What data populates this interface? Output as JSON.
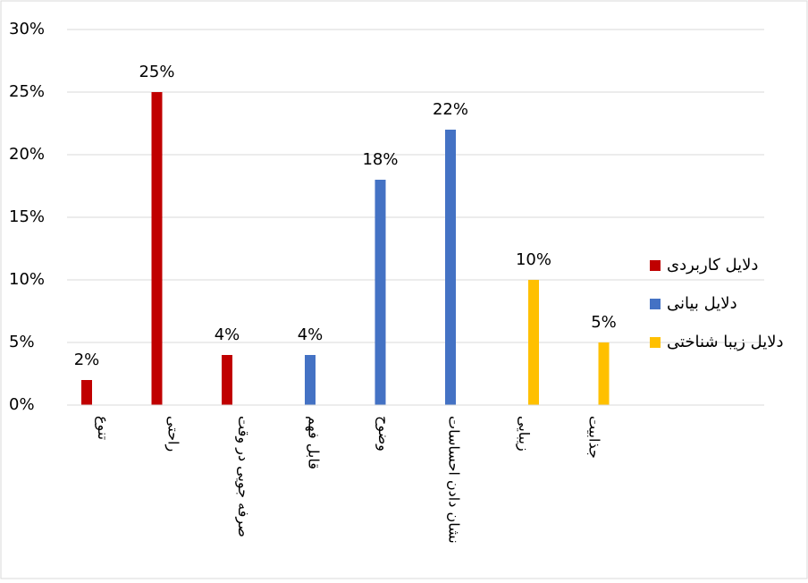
{
  "chart_data": {
    "type": "bar",
    "categories": [
      "تنوع",
      "راحتی",
      "صرفه جویی در وقت",
      "قابل فهم",
      "وضوح",
      "نشان دادن احساسات",
      "زیبایی",
      "جذابیت"
    ],
    "series": [
      {
        "name": "دلایل کاربردی",
        "color": "#c00000",
        "values": [
          2,
          25,
          4,
          null,
          null,
          null,
          null,
          null
        ],
        "value_labels": [
          "2%",
          "25%",
          "4%",
          null,
          null,
          null,
          null,
          null
        ]
      },
      {
        "name": "دلایل بیانی",
        "color": "#4472c4",
        "values": [
          null,
          null,
          null,
          4,
          18,
          22,
          null,
          null
        ],
        "value_labels": [
          null,
          null,
          null,
          "4%",
          "18%",
          "22%",
          null,
          null
        ]
      },
      {
        "name": "دلایل زیبا شناختی",
        "color": "#ffc000",
        "values": [
          null,
          null,
          null,
          null,
          null,
          null,
          10,
          5
        ],
        "value_labels": [
          null,
          null,
          null,
          null,
          null,
          null,
          "10%",
          "5%"
        ]
      }
    ],
    "ylim": [
      0,
      30
    ],
    "yticks": [
      {
        "value": 0,
        "label": "0%"
      },
      {
        "value": 5,
        "label": "5%"
      },
      {
        "value": 10,
        "label": "10%"
      },
      {
        "value": 15,
        "label": "15%"
      },
      {
        "value": 20,
        "label": "20%"
      },
      {
        "value": 25,
        "label": "25%"
      },
      {
        "value": 30,
        "label": "30%"
      }
    ],
    "grid": true,
    "legend": "right"
  }
}
